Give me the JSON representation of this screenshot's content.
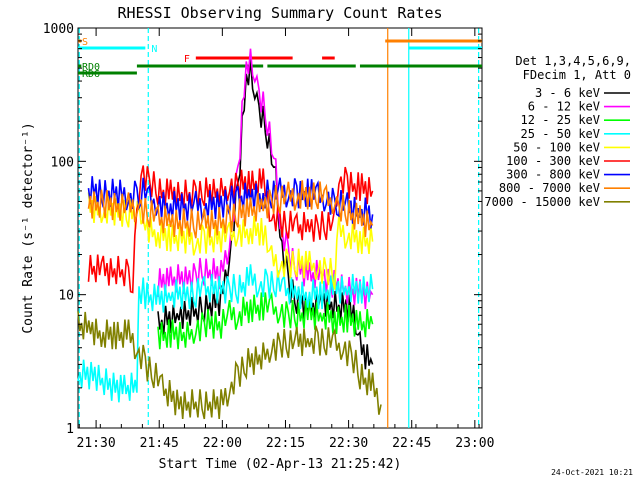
{
  "chart_data": {
    "type": "line",
    "title": "RHESSI Observing Summary Count Rates",
    "xlabel": "Start Time (02-Apr-13 21:25:42)",
    "ylabel": "Count Rate (s⁻¹ detector⁻¹)",
    "y_scale": "log",
    "ylim": [
      1,
      1000
    ],
    "xlim_minutes": [
      0,
      96
    ],
    "x_ticks": [
      {
        "minute": 4.3,
        "label": "21:30"
      },
      {
        "minute": 19.3,
        "label": "21:45"
      },
      {
        "minute": 34.3,
        "label": "22:00"
      },
      {
        "minute": 49.3,
        "label": "22:15"
      },
      {
        "minute": 64.3,
        "label": "22:30"
      },
      {
        "minute": 79.3,
        "label": "22:45"
      },
      {
        "minute": 94.3,
        "label": "23:00"
      }
    ],
    "y_ticks": [
      {
        "value": 1,
        "label": "1"
      },
      {
        "value": 10,
        "label": "10"
      },
      {
        "value": 100,
        "label": "100"
      },
      {
        "value": 1000,
        "label": "1000"
      }
    ],
    "legend_header": [
      "Det 1,3,4,5,6,9,",
      "FDecim 1, Att 0"
    ],
    "legend_position": "right",
    "series": [
      {
        "name": "3 - 6 keV",
        "color": "#000000",
        "points": [
          [
            19,
            6
          ],
          [
            24,
            7
          ],
          [
            28,
            7.5
          ],
          [
            30,
            8
          ],
          [
            34,
            9
          ],
          [
            36,
            20
          ],
          [
            38,
            60
          ],
          [
            39.5,
            300
          ],
          [
            41,
            470
          ],
          [
            42,
            320
          ],
          [
            43,
            250
          ],
          [
            45,
            160
          ],
          [
            47,
            70
          ],
          [
            48,
            30
          ],
          [
            50,
            12
          ],
          [
            52,
            9
          ],
          [
            55,
            8
          ],
          [
            58,
            9
          ],
          [
            62,
            8
          ],
          [
            65,
            8
          ],
          [
            67,
            4
          ],
          [
            70,
            3
          ]
        ]
      },
      {
        "name": "6 - 12 keV",
        "color": "#ff00ff",
        "points": [
          [
            19,
            12
          ],
          [
            22,
            13
          ],
          [
            26,
            13
          ],
          [
            28,
            14
          ],
          [
            30,
            15
          ],
          [
            34,
            14
          ],
          [
            36,
            25
          ],
          [
            38,
            80
          ],
          [
            39.5,
            380
          ],
          [
            41,
            560
          ],
          [
            42,
            430
          ],
          [
            43,
            330
          ],
          [
            45,
            200
          ],
          [
            47,
            80
          ],
          [
            48,
            35
          ],
          [
            50,
            20
          ],
          [
            52,
            16
          ],
          [
            55,
            14
          ],
          [
            58,
            14
          ],
          [
            60,
            12
          ],
          [
            64,
            11
          ],
          [
            67,
            10
          ],
          [
            70,
            10
          ]
        ]
      },
      {
        "name": "12 - 25 keV",
        "color": "#00ff00",
        "points": [
          [
            19,
            5
          ],
          [
            22,
            5
          ],
          [
            26,
            5
          ],
          [
            28,
            5.5
          ],
          [
            30,
            6
          ],
          [
            34,
            6
          ],
          [
            36,
            7
          ],
          [
            38,
            7
          ],
          [
            41,
            8
          ],
          [
            44,
            8
          ],
          [
            46,
            8
          ],
          [
            48,
            7.5
          ],
          [
            50,
            7
          ],
          [
            52,
            7
          ],
          [
            55,
            7
          ],
          [
            58,
            7
          ],
          [
            61,
            6.5
          ],
          [
            64,
            6.5
          ],
          [
            67,
            6
          ],
          [
            70,
            6
          ]
        ]
      },
      {
        "name": "25 - 50 keV",
        "color": "#00ffff",
        "points": [
          [
            0,
            2.5
          ],
          [
            4,
            2.5
          ],
          [
            8,
            2
          ],
          [
            11,
            2
          ],
          [
            14,
            2
          ],
          [
            14.5,
            11
          ],
          [
            16,
            10
          ],
          [
            19,
            9
          ],
          [
            22,
            10
          ],
          [
            26,
            10
          ],
          [
            28,
            10
          ],
          [
            30,
            11
          ],
          [
            34,
            11
          ],
          [
            36,
            11
          ],
          [
            38,
            11
          ],
          [
            41,
            13
          ],
          [
            43,
            12
          ],
          [
            45,
            12
          ],
          [
            47,
            12
          ],
          [
            49,
            11
          ],
          [
            52,
            10
          ],
          [
            55,
            10
          ],
          [
            58,
            10
          ],
          [
            61,
            11
          ],
          [
            64,
            11
          ],
          [
            67,
            11
          ],
          [
            70,
            11
          ]
        ]
      },
      {
        "name": "50 - 100 keV",
        "color": "#ffff00",
        "points": [
          [
            2.5,
            45
          ],
          [
            6,
            43
          ],
          [
            10,
            42
          ],
          [
            12,
            40
          ],
          [
            14.5,
            40
          ],
          [
            16,
            33
          ],
          [
            19,
            28
          ],
          [
            22,
            27
          ],
          [
            26,
            26
          ],
          [
            28,
            25
          ],
          [
            30,
            26
          ],
          [
            34,
            26
          ],
          [
            36,
            28
          ],
          [
            38,
            29
          ],
          [
            41,
            30
          ],
          [
            44,
            30
          ],
          [
            46,
            18
          ],
          [
            48,
            17
          ],
          [
            50,
            17
          ],
          [
            52,
            17
          ],
          [
            55,
            17
          ],
          [
            57,
            16
          ],
          [
            59,
            15
          ],
          [
            61,
            14
          ],
          [
            62,
            30
          ],
          [
            64,
            28
          ],
          [
            67,
            26
          ],
          [
            70,
            25
          ]
        ]
      },
      {
        "name": "100 - 300 keV",
        "color": "#ff0000",
        "points": [
          [
            2.5,
            16
          ],
          [
            6,
            15
          ],
          [
            10,
            15
          ],
          [
            12,
            14
          ],
          [
            13,
            13
          ],
          [
            14,
            35
          ],
          [
            15,
            85
          ],
          [
            17,
            70
          ],
          [
            19,
            60
          ],
          [
            22,
            56
          ],
          [
            26,
            56
          ],
          [
            28,
            56
          ],
          [
            30,
            58
          ],
          [
            34,
            60
          ],
          [
            36,
            64
          ],
          [
            38,
            66
          ],
          [
            41,
            68
          ],
          [
            44,
            68
          ],
          [
            46,
            40
          ],
          [
            48,
            35
          ],
          [
            50,
            33
          ],
          [
            52,
            32
          ],
          [
            55,
            32
          ],
          [
            57,
            32
          ],
          [
            59,
            33
          ],
          [
            61,
            34
          ],
          [
            62,
            75
          ],
          [
            64,
            68
          ],
          [
            67,
            63
          ],
          [
            70,
            60
          ]
        ]
      },
      {
        "name": "300 - 800 keV",
        "color": "#0000ff",
        "points": [
          [
            2.5,
            60
          ],
          [
            6,
            58
          ],
          [
            10,
            56
          ],
          [
            12,
            55
          ],
          [
            14,
            55
          ],
          [
            15,
            60
          ],
          [
            17,
            52
          ],
          [
            19,
            48
          ],
          [
            22,
            46
          ],
          [
            26,
            46
          ],
          [
            28,
            46
          ],
          [
            30,
            46
          ],
          [
            34,
            48
          ],
          [
            36,
            50
          ],
          [
            38,
            52
          ],
          [
            41,
            54
          ],
          [
            44,
            55
          ],
          [
            46,
            57
          ],
          [
            48,
            58
          ],
          [
            50,
            58
          ],
          [
            52,
            57
          ],
          [
            55,
            57
          ],
          [
            57,
            55
          ],
          [
            59,
            52
          ],
          [
            61,
            50
          ],
          [
            62,
            50
          ],
          [
            64,
            45
          ],
          [
            67,
            42
          ],
          [
            70,
            40
          ]
        ]
      },
      {
        "name": "800 - 7000 keV",
        "color": "#ff8000",
        "points": [
          [
            2.5,
            48
          ],
          [
            6,
            47
          ],
          [
            10,
            46
          ],
          [
            12,
            45
          ],
          [
            14,
            45
          ],
          [
            15,
            45
          ],
          [
            17,
            40
          ],
          [
            19,
            37
          ],
          [
            22,
            35
          ],
          [
            26,
            34
          ],
          [
            28,
            34
          ],
          [
            30,
            34
          ],
          [
            34,
            35
          ],
          [
            36,
            37
          ],
          [
            38,
            40
          ],
          [
            41,
            43
          ],
          [
            44,
            46
          ],
          [
            46,
            50
          ],
          [
            48,
            52
          ],
          [
            50,
            54
          ],
          [
            52,
            55
          ],
          [
            55,
            56
          ],
          [
            57,
            55
          ],
          [
            59,
            52
          ],
          [
            61,
            50
          ],
          [
            62,
            45
          ],
          [
            64,
            42
          ],
          [
            67,
            36
          ],
          [
            70,
            33
          ]
        ]
      },
      {
        "name": "7000 - 15000 keV",
        "color": "#808000",
        "points": [
          [
            0,
            6
          ],
          [
            3,
            5.5
          ],
          [
            6,
            5
          ],
          [
            9,
            5
          ],
          [
            12,
            5
          ],
          [
            14,
            4
          ],
          [
            16,
            3
          ],
          [
            18,
            2.5
          ],
          [
            20,
            2
          ],
          [
            24,
            1.5
          ],
          [
            28,
            1.5
          ],
          [
            30,
            1.5
          ],
          [
            34,
            1.5
          ],
          [
            36,
            2
          ],
          [
            38,
            2.5
          ],
          [
            40,
            3
          ],
          [
            44,
            3.5
          ],
          [
            46,
            4
          ],
          [
            48,
            4.2
          ],
          [
            50,
            4.3
          ],
          [
            52,
            4.4
          ],
          [
            55,
            4.5
          ],
          [
            57,
            4.5
          ],
          [
            59,
            4.4
          ],
          [
            61,
            4.3
          ],
          [
            63,
            4
          ],
          [
            65,
            3.5
          ],
          [
            67,
            2.5
          ],
          [
            70,
            2
          ],
          [
            72,
            1.5
          ]
        ]
      }
    ],
    "annotations": {
      "flag_bars": [
        {
          "label": "S",
          "color": "#ff8000",
          "segments": [
            [
              0,
              0.8
            ],
            [
              73,
              96
            ]
          ]
        },
        {
          "label": "N",
          "color": "#00ffff",
          "segments": [
            [
              0,
              16
            ],
            [
              78.5,
              96
            ]
          ]
        },
        {
          "label": "F",
          "color": "#ff0000",
          "segments": [
            [
              28,
              51
            ],
            [
              58,
              61
            ]
          ]
        },
        {
          "label": "RD0",
          "color": "#008000",
          "segments": [
            [
              0,
              0.8
            ],
            [
              14,
              44
            ],
            [
              45,
              66
            ],
            [
              67,
              96
            ]
          ]
        },
        {
          "label": "RD6",
          "color": "#008000",
          "segments": [
            [
              0,
              14
            ]
          ]
        }
      ],
      "vlines": [
        {
          "minute": 0.3,
          "color": "#00ffff",
          "style": "dashed"
        },
        {
          "minute": 16.7,
          "color": "#00ffff",
          "style": "dashed"
        },
        {
          "minute": 73.6,
          "color": "#ff8000",
          "style": "solid"
        },
        {
          "minute": 78.6,
          "color": "#00ffff",
          "style": "solid"
        },
        {
          "minute": 95.2,
          "color": "#00ffff",
          "style": "dashed"
        }
      ]
    },
    "footer_timestamp": "24-Oct-2021 10:21"
  }
}
